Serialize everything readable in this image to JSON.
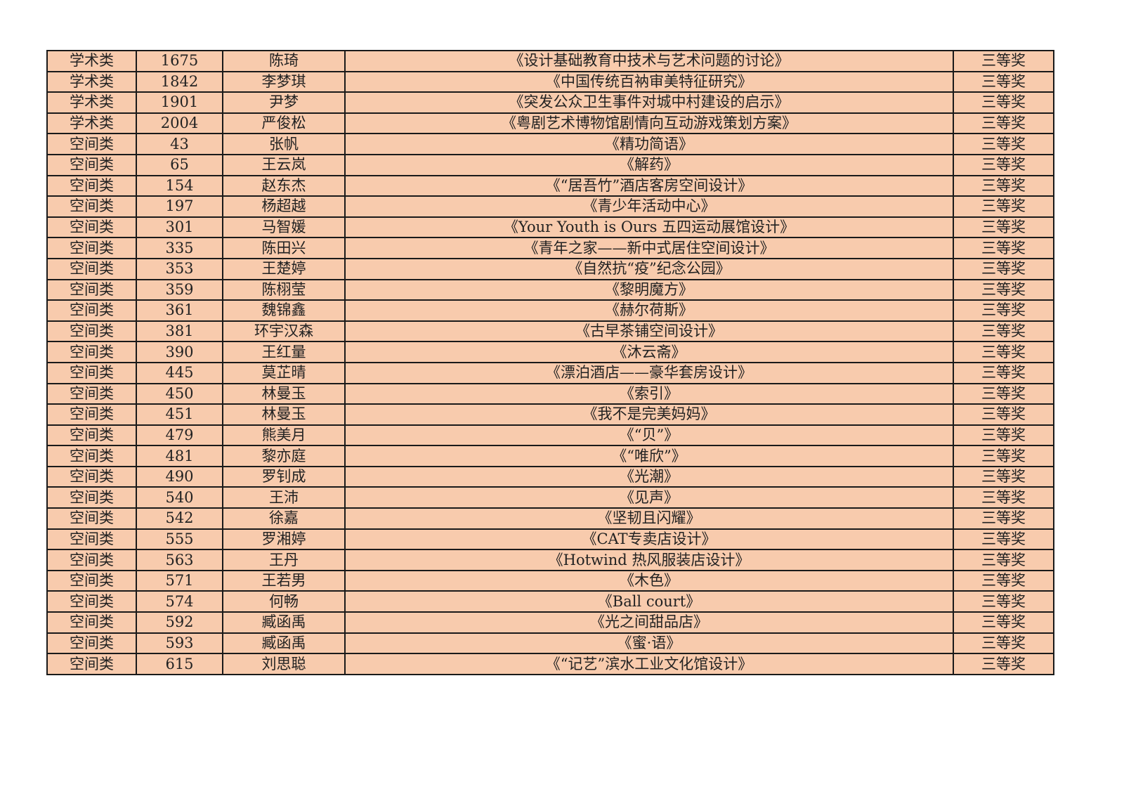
{
  "table": {
    "rows": [
      [
        "学术类",
        "1675",
        "陈琦",
        "《设计基础教育中技术与艺术问题的讨论》",
        "三等奖"
      ],
      [
        "学术类",
        "1842",
        "李梦琪",
        "《中国传统百衲审美特征研究》",
        "三等奖"
      ],
      [
        "学术类",
        "1901",
        "尹梦",
        "《突发公众卫生事件对城中村建设的启示》",
        "三等奖"
      ],
      [
        "学术类",
        "2004",
        "严俊松",
        "《粤剧艺术博物馆剧情向互动游戏策划方案》",
        "三等奖"
      ],
      [
        "空间类",
        "43",
        "张帆",
        "《精功简语》",
        "三等奖"
      ],
      [
        "空间类",
        "65",
        "王云岚",
        "《解药》",
        "三等奖"
      ],
      [
        "空间类",
        "154",
        "赵东杰",
        "《“居吾竹”酒店客房空间设计》",
        "三等奖"
      ],
      [
        "空间类",
        "197",
        "杨超越",
        "《青少年活动中心》",
        "三等奖"
      ],
      [
        "空间类",
        "301",
        "马智媛",
        "《Your Youth is Ours 五四运动展馆设计》",
        "三等奖"
      ],
      [
        "空间类",
        "335",
        "陈田兴",
        "《青年之家——新中式居住空间设计》",
        "三等奖"
      ],
      [
        "空间类",
        "353",
        "王楚婷",
        "《自然抗“疫”纪念公园》",
        "三等奖"
      ],
      [
        "空间类",
        "359",
        "陈栩莹",
        "《黎明魔方》",
        "三等奖"
      ],
      [
        "空间类",
        "361",
        "魏锦鑫",
        "《赫尔荷斯》",
        "三等奖"
      ],
      [
        "空间类",
        "381",
        "环宇汉森",
        "《古早茶铺空间设计》",
        "三等奖"
      ],
      [
        "空间类",
        "390",
        "王红量",
        "《沐云斋》",
        "三等奖"
      ],
      [
        "空间类",
        "445",
        "莫芷晴",
        "《漂泊酒店——豪华套房设计》",
        "三等奖"
      ],
      [
        "空间类",
        "450",
        "林曼玉",
        "《索引》",
        "三等奖"
      ],
      [
        "空间类",
        "451",
        "林曼玉",
        "《我不是完美妈妈》",
        "三等奖"
      ],
      [
        "空间类",
        "479",
        "熊美月",
        "《“贝”》",
        "三等奖"
      ],
      [
        "空间类",
        "481",
        "黎亦庭",
        "《“唯欣”》",
        "三等奖"
      ],
      [
        "空间类",
        "490",
        "罗钊成",
        "《光潮》",
        "三等奖"
      ],
      [
        "空间类",
        "540",
        "王沛",
        "《见声》",
        "三等奖"
      ],
      [
        "空间类",
        "542",
        "徐嘉",
        "《坚韧且闪耀》",
        "三等奖"
      ],
      [
        "空间类",
        "555",
        "罗湘婷",
        "《CAT专卖店设计》",
        "三等奖"
      ],
      [
        "空间类",
        "563",
        "王丹",
        "《Hotwind 热风服装店设计》",
        "三等奖"
      ],
      [
        "空间类",
        "571",
        "王若男",
        "《木色》",
        "三等奖"
      ],
      [
        "空间类",
        "574",
        "何畅",
        "《Ball court》",
        "三等奖"
      ],
      [
        "空间类",
        "592",
        "臧函禹",
        "《光之间甜品店》",
        "三等奖"
      ],
      [
        "空间类",
        "593",
        "臧函禹",
        "《蜜·语》",
        "三等奖"
      ],
      [
        "空间类",
        "615",
        "刘思聪",
        "《“记艺”滨水工业文化馆设计》",
        "三等奖"
      ]
    ]
  },
  "colors": {
    "cell_fill": "#F8CBAD",
    "border": "#1a1a1a"
  }
}
